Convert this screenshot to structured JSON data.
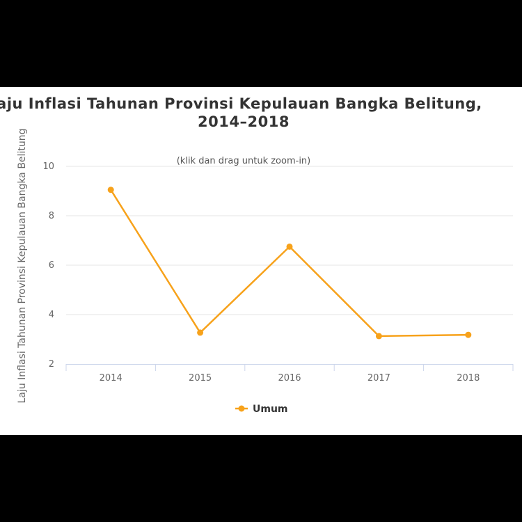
{
  "chart_data": {
    "type": "line",
    "title_lines": [
      "Laju Inflasi Tahunan Provinsi Kepulauan Bangka Belitung,",
      "2014–2018"
    ],
    "subtitle": "(klik dan drag untuk zoom-in)",
    "ylabel": "Laju Inflasi Tahunan Provinsi Kepulauan Bangka Belitung",
    "xlabel": "",
    "categories": [
      "2014",
      "2015",
      "2016",
      "2017",
      "2018"
    ],
    "series": [
      {
        "name": "Umum",
        "color": "#f7a21b",
        "values": [
          9.05,
          3.27,
          6.75,
          3.13,
          3.18
        ]
      }
    ],
    "ylim": [
      2,
      10
    ],
    "yticks": [
      2,
      4,
      6,
      8,
      10
    ],
    "grid": true,
    "legend": "bottom-center"
  }
}
